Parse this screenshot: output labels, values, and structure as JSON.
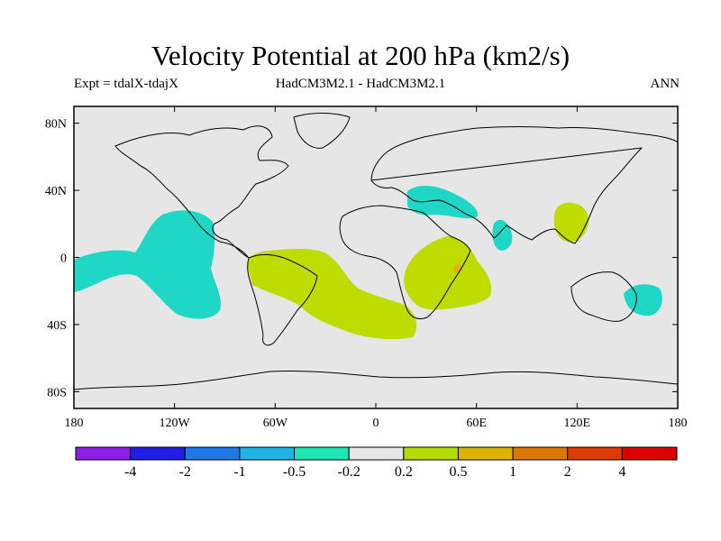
{
  "title": "Velocity Potential at 200 hPa (km2/s)",
  "subtitle": {
    "left": "Expt = tdalX-tdajX",
    "center": "HadCM3M2.1 - HadCM3M2.1",
    "right": "ANN"
  },
  "chart_data": {
    "type": "map",
    "projection": "cylindrical-equidistant",
    "lon_range": [
      -180,
      180
    ],
    "lat_range": [
      -90,
      90
    ],
    "x_tick_labels": [
      "180",
      "120W",
      "60W",
      "0",
      "60E",
      "120E",
      "180"
    ],
    "y_tick_labels": [
      "80N",
      "40N",
      "0",
      "40S",
      "80S"
    ],
    "colorbar": {
      "labels": [
        "-4",
        "-2",
        "-1",
        "-0.5",
        "-0.2",
        "0.2",
        "0.5",
        "1",
        "2",
        "4"
      ],
      "colors": [
        "#8c1ee6",
        "#1e1ee6",
        "#1e78e6",
        "#1eb4e6",
        "#1ee6b4",
        "#e6e6e6",
        "#b4dc00",
        "#dcb400",
        "#dc7800",
        "#dc3c00",
        "#dc0000"
      ]
    },
    "shaded_regions": [
      {
        "level": "-0.5 to -0.2",
        "area": "Eastern tropical Pacific"
      },
      {
        "level": "-0.5 to -0.2",
        "area": "Eastern Mediterranean / Middle East"
      },
      {
        "level": "-0.5 to -0.2",
        "area": "Bay of Bengal"
      },
      {
        "level": "-0.5 to -0.2",
        "area": "Coral Sea / East of Australia"
      },
      {
        "level": "0.2 to 0.5",
        "area": "Tropical South America and South Atlantic"
      },
      {
        "level": "0.2 to 0.5",
        "area": "Eastern Africa and Western Indian Ocean"
      },
      {
        "level": "0.5 to 1",
        "area": "Madagascar"
      },
      {
        "level": "0.2 to 0.5",
        "area": "East China / Taiwan"
      }
    ],
    "background_color": "#e6e6e6"
  }
}
